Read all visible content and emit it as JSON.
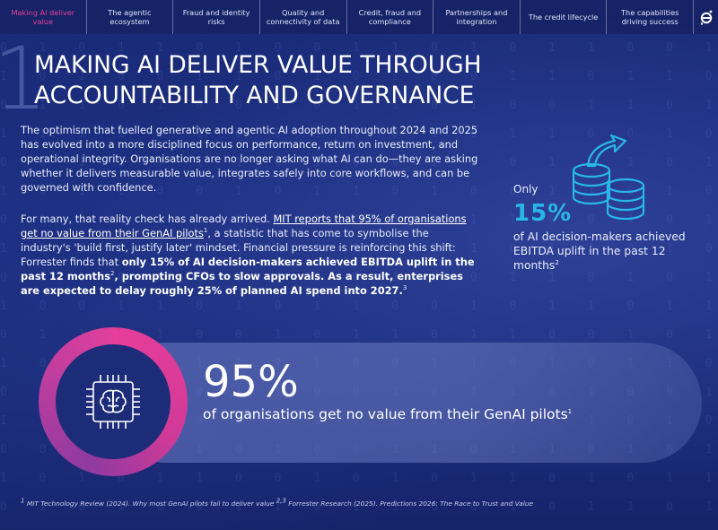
{
  "nav": {
    "items": [
      {
        "label": "Making AI deliver value",
        "active": true
      },
      {
        "label": "The agentic ecosystem",
        "active": false
      },
      {
        "label": "Fraud and identity risks",
        "active": false
      },
      {
        "label": "Quality and connectivity of data",
        "active": false
      },
      {
        "label": "Credit, fraud and compliance",
        "active": false
      },
      {
        "label": "Partnerships and integration",
        "active": false
      },
      {
        "label": "The credit lifecycle",
        "active": false
      },
      {
        "label": "The capabilities driving success",
        "active": false
      }
    ],
    "logo_icon": "e-logo-icon"
  },
  "section_number": "1",
  "title": "MAKING AI DELIVER VALUE THROUGH ACCOUNTABILITY AND GOVERNANCE",
  "paragraph1": "The optimism that fuelled generative and agentic AI adoption throughout 2024 and 2025 has evolved into a more disciplined focus on performance, return on investment, and operational integrity. Organisations are no longer asking what AI can do—they are asking whether it delivers measurable value, integrates safely into core workflows, and can be governed with confidence.",
  "paragraph2": {
    "intro": "For many, that reality check has already arrived. ",
    "link": "MIT reports that 95% of organisations get no value from their GenAI pilots",
    "link_sup": "1",
    "mid": ", a statistic that has come to symbolise the industry's 'build first, justify later' mindset. Financial pressure is reinforcing this shift: Forrester finds that ",
    "bold1": "only 15% of AI decision-makers achieved EBITDA uplift in the past 12 months",
    "bold1_sup": "2",
    "bold2": ", prompting CFOs to slow approvals. As a result, enterprises are expected to delay roughly 25% of planned AI spend into 2027.",
    "bold2_sup": "3"
  },
  "side_stat": {
    "lead": "Only",
    "value": "15%",
    "description": "of AI decision-makers achieved EBITDA uplift in the past 12 months",
    "sup": "2",
    "icon": "database-growth-icon"
  },
  "callout": {
    "value": "95%",
    "description": "of organisations get no value from their GenAI pilots",
    "sup": "1",
    "icon": "ai-brain-chip-icon",
    "colors": {
      "ring": "#e83d9a",
      "accent": "#29b6e8"
    }
  },
  "footnote": {
    "sup1": "1",
    "text1": "MIT Technology Review (2024). Why most GenAI pilots fail to deliver value",
    "sup2": "2,3",
    "text2": "Forrester Research (2025). Predictions 2026: The Race to Trust and Value"
  }
}
